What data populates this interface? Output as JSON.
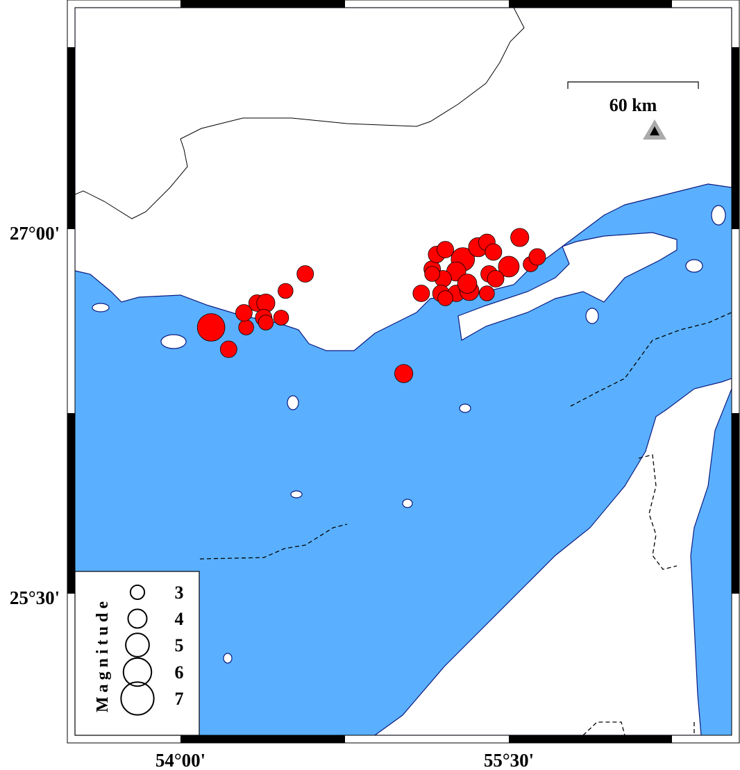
{
  "map": {
    "lat_labels": [
      "27°00'",
      "25°30'"
    ],
    "lon_labels": [
      "54°00'",
      "55°30'"
    ],
    "scale_bar": "60 km",
    "colors": {
      "water": "#5ab0fe",
      "land": "#ffffff",
      "coast": "#0a1a80",
      "event": "#ff0000"
    },
    "station_icon": "triangle-station-icon"
  },
  "legend": {
    "title": "Magnitude",
    "items": [
      {
        "label": "3",
        "mag": 3
      },
      {
        "label": "4",
        "mag": 4
      },
      {
        "label": "5",
        "mag": 5
      },
      {
        "label": "6",
        "mag": 6
      },
      {
        "label": "7",
        "mag": 7
      }
    ]
  },
  "events": [
    {
      "lon": 54.14,
      "lat": 26.61,
      "mag": 5.3
    },
    {
      "lon": 54.22,
      "lat": 26.52,
      "mag": 3.2
    },
    {
      "lon": 54.3,
      "lat": 26.61,
      "mag": 2.9
    },
    {
      "lon": 54.29,
      "lat": 26.67,
      "mag": 3.2
    },
    {
      "lon": 54.35,
      "lat": 26.71,
      "mag": 3.2
    },
    {
      "lon": 54.39,
      "lat": 26.71,
      "mag": 3.5
    },
    {
      "lon": 54.38,
      "lat": 26.65,
      "mag": 3.2
    },
    {
      "lon": 54.39,
      "lat": 26.63,
      "mag": 2.9
    },
    {
      "lon": 54.46,
      "lat": 26.65,
      "mag": 2.9
    },
    {
      "lon": 54.48,
      "lat": 26.76,
      "mag": 2.9
    },
    {
      "lon": 54.57,
      "lat": 26.83,
      "mag": 3.2
    },
    {
      "lon": 55.02,
      "lat": 26.42,
      "mag": 3.5
    },
    {
      "lon": 55.1,
      "lat": 26.75,
      "mag": 3.2
    },
    {
      "lon": 55.15,
      "lat": 26.85,
      "mag": 3.2
    },
    {
      "lon": 55.17,
      "lat": 26.91,
      "mag": 3.2
    },
    {
      "lon": 55.21,
      "lat": 26.93,
      "mag": 3.2
    },
    {
      "lon": 55.29,
      "lat": 26.89,
      "mag": 4.5
    },
    {
      "lon": 55.36,
      "lat": 26.94,
      "mag": 3.7
    },
    {
      "lon": 55.4,
      "lat": 26.96,
      "mag": 3.2
    },
    {
      "lon": 55.43,
      "lat": 26.92,
      "mag": 3.2
    },
    {
      "lon": 55.5,
      "lat": 26.86,
      "mag": 4.0
    },
    {
      "lon": 55.55,
      "lat": 26.98,
      "mag": 3.5
    },
    {
      "lon": 55.6,
      "lat": 26.87,
      "mag": 2.9
    },
    {
      "lon": 55.63,
      "lat": 26.9,
      "mag": 3.2
    },
    {
      "lon": 55.26,
      "lat": 26.84,
      "mag": 3.7
    },
    {
      "lon": 55.2,
      "lat": 26.81,
      "mag": 3.2
    },
    {
      "lon": 55.19,
      "lat": 26.75,
      "mag": 3.2
    },
    {
      "lon": 55.26,
      "lat": 26.75,
      "mag": 3.2
    },
    {
      "lon": 55.32,
      "lat": 26.76,
      "mag": 3.7
    },
    {
      "lon": 55.31,
      "lat": 26.79,
      "mag": 3.7
    },
    {
      "lon": 55.41,
      "lat": 26.83,
      "mag": 3.2
    },
    {
      "lon": 55.44,
      "lat": 26.81,
      "mag": 3.2
    },
    {
      "lon": 55.4,
      "lat": 26.75,
      "mag": 2.9
    },
    {
      "lon": 55.21,
      "lat": 26.73,
      "mag": 2.9
    },
    {
      "lon": 55.15,
      "lat": 26.83,
      "mag": 2.9
    }
  ]
}
